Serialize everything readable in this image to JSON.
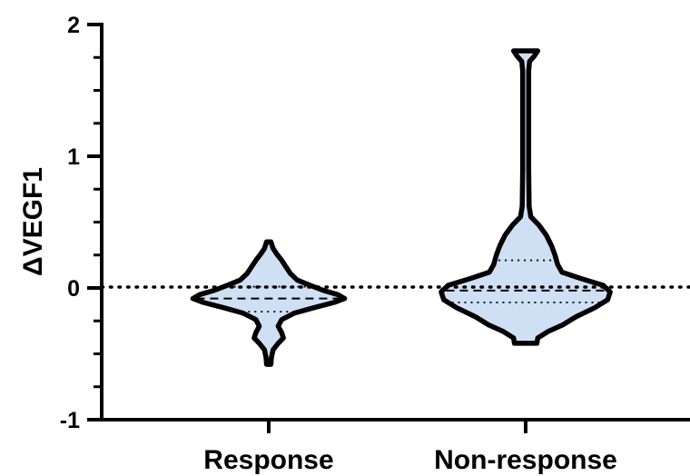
{
  "chart_data": {
    "type": "violin",
    "ylabel": "ΔVEGF1",
    "ylim": [
      -1,
      2
    ],
    "yticks": [
      -1,
      0,
      1,
      2
    ],
    "reference_line": 0,
    "grid": false,
    "fill_color": "#cfe0f5",
    "stroke_color": "#000000",
    "categories": [
      "Response",
      "Non-response"
    ],
    "violins": [
      {
        "category": "Response",
        "min": -0.58,
        "max": 0.35,
        "median": -0.08,
        "q1": -0.18,
        "q3": 0.01,
        "profile": [
          [
            -0.58,
            0.025
          ],
          [
            -0.53,
            0.03
          ],
          [
            -0.47,
            0.05
          ],
          [
            -0.42,
            0.11
          ],
          [
            -0.38,
            0.17
          ],
          [
            -0.34,
            0.15
          ],
          [
            -0.29,
            0.11
          ],
          [
            -0.24,
            0.15
          ],
          [
            -0.19,
            0.3
          ],
          [
            -0.15,
            0.52
          ],
          [
            -0.11,
            0.76
          ],
          [
            -0.08,
            0.88
          ],
          [
            -0.05,
            0.8
          ],
          [
            -0.02,
            0.64
          ],
          [
            0.02,
            0.48
          ],
          [
            0.06,
            0.33
          ],
          [
            0.11,
            0.25
          ],
          [
            0.16,
            0.2
          ],
          [
            0.21,
            0.15
          ],
          [
            0.26,
            0.09
          ],
          [
            0.3,
            0.05
          ],
          [
            0.35,
            0.025
          ]
        ]
      },
      {
        "category": "Non-response",
        "min": -0.42,
        "max": 1.8,
        "median": -0.02,
        "q1": -0.11,
        "q3": 0.21,
        "profile": [
          [
            -0.42,
            0.13
          ],
          [
            -0.38,
            0.14
          ],
          [
            -0.33,
            0.26
          ],
          [
            -0.28,
            0.43
          ],
          [
            -0.22,
            0.58
          ],
          [
            -0.15,
            0.8
          ],
          [
            -0.09,
            0.95
          ],
          [
            -0.03,
            0.98
          ],
          [
            0.02,
            0.9
          ],
          [
            0.07,
            0.65
          ],
          [
            0.12,
            0.42
          ],
          [
            0.18,
            0.37
          ],
          [
            0.25,
            0.34
          ],
          [
            0.32,
            0.3
          ],
          [
            0.4,
            0.24
          ],
          [
            0.48,
            0.15
          ],
          [
            0.54,
            0.06
          ],
          [
            0.62,
            0.04
          ],
          [
            0.9,
            0.035
          ],
          [
            1.3,
            0.035
          ],
          [
            1.65,
            0.035
          ],
          [
            1.72,
            0.045
          ],
          [
            1.76,
            0.1
          ],
          [
            1.8,
            0.14
          ]
        ]
      }
    ]
  }
}
